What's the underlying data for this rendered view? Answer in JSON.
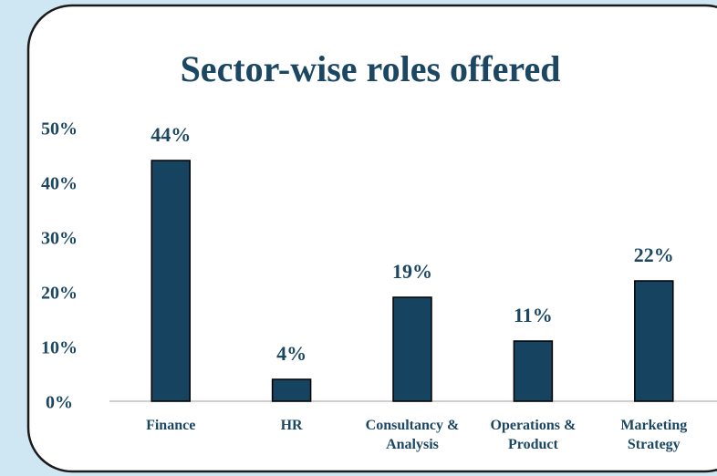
{
  "chart_data": {
    "type": "bar",
    "title": "Sector-wise roles offered",
    "categories": [
      "Finance",
      "HR",
      "Consultancy & Analysis",
      "Operations & Product",
      "Marketing Strategy"
    ],
    "values": [
      44,
      4,
      19,
      11,
      22
    ],
    "value_labels": [
      "44%",
      "4%",
      "19%",
      "11%",
      "22%"
    ],
    "color": "#154360",
    "ylim": [
      0,
      50
    ],
    "yticks": [
      {
        "value": 0,
        "label": "0%"
      },
      {
        "value": 10,
        "label": "10%"
      },
      {
        "value": 20,
        "label": "20%"
      },
      {
        "value": 30,
        "label": "30%"
      },
      {
        "value": 40,
        "label": "40%"
      },
      {
        "value": 50,
        "label": "50%"
      }
    ],
    "grid": false
  }
}
